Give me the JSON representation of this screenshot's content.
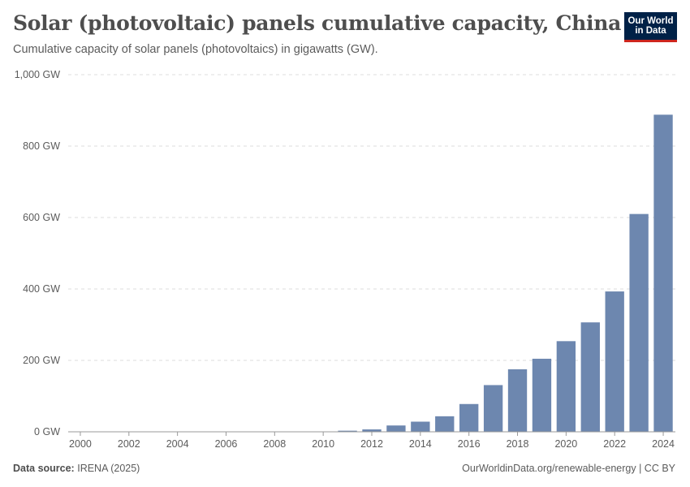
{
  "header": {
    "title": "Solar (photovoltaic) panels cumulative capacity, China",
    "subtitle": "Cumulative capacity of solar panels (photovoltaics) in gigawatts (GW)."
  },
  "logo": {
    "line1": "Our World",
    "line2": "in Data"
  },
  "footer": {
    "source_label": "Data source:",
    "source_value": "IRENA (2025)",
    "right_text": "OurWorldinData.org/renewable-energy | CC BY"
  },
  "colors": {
    "bar": "#6d87af",
    "grid": "#dddddd",
    "axis": "#999999"
  },
  "chart_data": {
    "type": "bar",
    "title": "Solar (photovoltaic) panels cumulative capacity, China",
    "xlabel": "",
    "ylabel": "",
    "unit": "GW",
    "ylim": [
      0,
      1000
    ],
    "yticks": [
      {
        "value": 0,
        "label": "0 GW"
      },
      {
        "value": 200,
        "label": "200 GW"
      },
      {
        "value": 400,
        "label": "400 GW"
      },
      {
        "value": 600,
        "label": "600 GW"
      },
      {
        "value": 800,
        "label": "800 GW"
      },
      {
        "value": 1000,
        "label": "1,000 GW"
      }
    ],
    "xtick_labels": [
      "2000",
      "2002",
      "2004",
      "2006",
      "2008",
      "2010",
      "2012",
      "2014",
      "2016",
      "2018",
      "2020",
      "2022",
      "2024"
    ],
    "categories": [
      "2000",
      "2001",
      "2002",
      "2003",
      "2004",
      "2005",
      "2006",
      "2007",
      "2008",
      "2009",
      "2010",
      "2011",
      "2012",
      "2013",
      "2014",
      "2015",
      "2016",
      "2017",
      "2018",
      "2019",
      "2020",
      "2021",
      "2022",
      "2023",
      "2024"
    ],
    "values": [
      0.02,
      0.02,
      0.04,
      0.05,
      0.06,
      0.07,
      0.08,
      0.1,
      0.14,
      0.3,
      1.0,
      3.1,
      6.7,
      17.7,
      28.4,
      43.5,
      77.8,
      130.8,
      175.0,
      204.6,
      253.8,
      306.4,
      393.0,
      609.9,
      887.9
    ]
  }
}
